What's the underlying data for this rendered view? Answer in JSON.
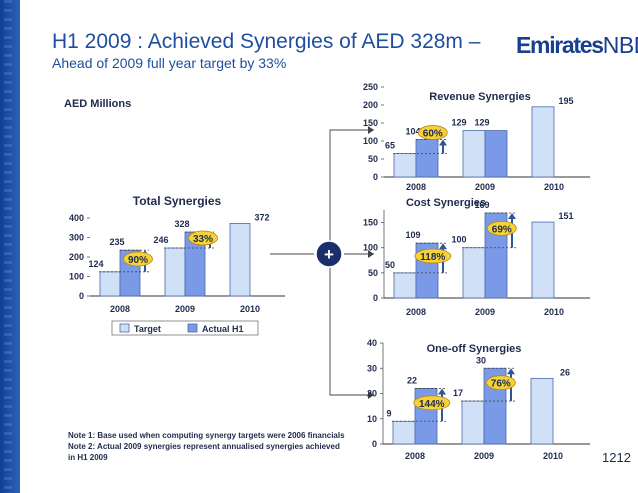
{
  "header": {
    "title": "H1 2009 : Achieved Synergies of AED 328m –",
    "subtitle": "Ahead of 2009 full year target by 33%",
    "logo_text": "EmiratesNBD",
    "unit_label": "AED Millions",
    "page_number": "1212"
  },
  "notes": [
    "Note 1: Base used when computing synergy targets were 2006 financials",
    "Note 2: Actual 2009 synergies represent annualised synergies achieved",
    "in H1 2009"
  ],
  "legend": {
    "target": "Target",
    "actual": "Actual H1"
  },
  "colors": {
    "target": "#cfe0f7",
    "actual": "#7a9ae8",
    "border": "#4a6aa8",
    "badge": "#f5d23a",
    "arrow": "#2f5597"
  },
  "chart_data": [
    {
      "id": "total",
      "type": "bar",
      "title": "Total Synergies",
      "categories": [
        "2008",
        "2009",
        "2010"
      ],
      "series": [
        {
          "name": "Target",
          "values": [
            124,
            246,
            372
          ]
        },
        {
          "name": "Actual H1",
          "values": [
            235,
            328,
            null
          ]
        }
      ],
      "ylim": [
        0,
        400
      ],
      "yticks": [
        0,
        100,
        200,
        300,
        400
      ],
      "badges": [
        {
          "text": "90%",
          "category": "2008"
        },
        {
          "text": "33%",
          "category": "2009"
        }
      ]
    },
    {
      "id": "revenue",
      "type": "bar",
      "title": "Revenue Synergies",
      "categories": [
        "2008",
        "2009",
        "2010"
      ],
      "series": [
        {
          "name": "Target",
          "values": [
            65,
            129,
            195
          ]
        },
        {
          "name": "Actual H1",
          "values": [
            104,
            129,
            null
          ]
        }
      ],
      "ylim": [
        0,
        250
      ],
      "yticks": [
        0,
        50,
        100,
        150,
        200,
        250
      ],
      "badges": [
        {
          "text": "60%",
          "category": "2008"
        }
      ]
    },
    {
      "id": "cost",
      "type": "bar",
      "title": "Cost Synergies",
      "categories": [
        "2008",
        "2009",
        "2010"
      ],
      "series": [
        {
          "name": "Target",
          "values": [
            50,
            100,
            151
          ]
        },
        {
          "name": "Actual H1",
          "values": [
            109,
            169,
            null
          ]
        }
      ],
      "ylim": [
        0,
        175
      ],
      "yticks": [
        0,
        50,
        100,
        150
      ],
      "badges": [
        {
          "text": "118%",
          "category": "2008"
        },
        {
          "text": "69%",
          "category": "2009"
        }
      ]
    },
    {
      "id": "oneoff",
      "type": "bar",
      "title": "One-off Synergies",
      "categories": [
        "2008",
        "2009",
        "2010"
      ],
      "series": [
        {
          "name": "Target",
          "values": [
            9,
            17,
            26
          ]
        },
        {
          "name": "Actual H1",
          "values": [
            22,
            30,
            null
          ]
        }
      ],
      "ylim": [
        0,
        40
      ],
      "yticks": [
        0,
        10,
        20,
        30,
        40
      ],
      "badges": [
        {
          "text": "144%",
          "category": "2008"
        },
        {
          "text": "76%",
          "category": "2009"
        }
      ]
    }
  ],
  "connector": {
    "symbol": "+"
  }
}
